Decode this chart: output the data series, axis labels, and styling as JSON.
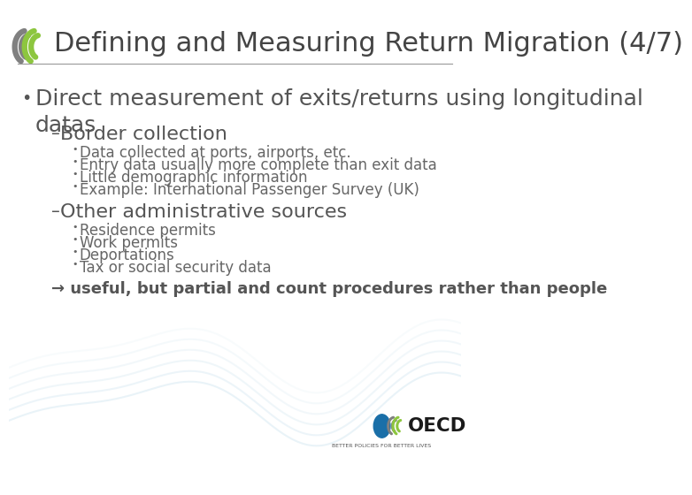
{
  "title": "Defining and Measuring Return Migration (4/7)",
  "title_fontsize": 22,
  "title_color": "#444444",
  "bg_color": "#ffffff",
  "separator_color": "#999999",
  "bullet1": "Direct measurement of exits/returns using longitudinal\ndatas",
  "bullet1_fontsize": 18,
  "sub1": "Border collection",
  "sub1_fontsize": 16,
  "sub1_items": [
    "Data collected at ports, airports, etc.",
    "Entry data usually more complete than exit data",
    "Little demographic information",
    "Example: International Passenger Survey (UK)"
  ],
  "sub1_items_fontsize": 12,
  "sub2": "Other administrative sources",
  "sub2_fontsize": 16,
  "sub2_items": [
    "Residence permits",
    "Work permits",
    "Deportations",
    "Tax or social security data"
  ],
  "sub2_items_fontsize": 12,
  "arrow_note": "→ useful, but partial and count procedures rather than people",
  "arrow_note_fontsize": 13,
  "text_color": "#555555",
  "sub_color": "#555555",
  "item_color": "#666666",
  "oecd_green": "#8dc63f",
  "oecd_gray": "#808080"
}
